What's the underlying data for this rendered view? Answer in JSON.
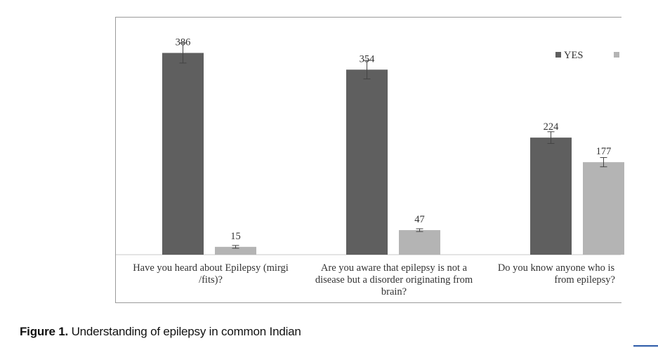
{
  "chart_data": {
    "type": "bar",
    "categories": [
      "Have you heard about Epilepsy (mirgi /fits)?",
      "Are you aware that epilepsy is not a disease but a disorder originating from brain?",
      "Do you know anyone who is from epilepsy?"
    ],
    "category_lines": [
      [
        "Have you heard about Epilepsy (mirgi",
        "/fits)?"
      ],
      [
        "Are you aware that epilepsy is not a",
        "disease but a disorder originating from",
        "brain?"
      ],
      [
        "Do you know anyone who is",
        "from epilepsy?"
      ]
    ],
    "series": [
      {
        "name": "YES",
        "values": [
          386,
          354,
          224
        ],
        "color": "#5f5f5f"
      },
      {
        "name": "",
        "values": [
          15,
          47,
          177
        ],
        "color": "#b4b4b4"
      }
    ],
    "data_labels": [
      [
        "386",
        "354",
        "224"
      ],
      [
        "15",
        "47",
        "177"
      ]
    ],
    "ylim": [
      0,
      400
    ],
    "grid": false,
    "legend": "top-right",
    "error_bars": true
  },
  "caption": {
    "label": "Figure 1.",
    "text": " Understanding of epilepsy in common Indian"
  }
}
